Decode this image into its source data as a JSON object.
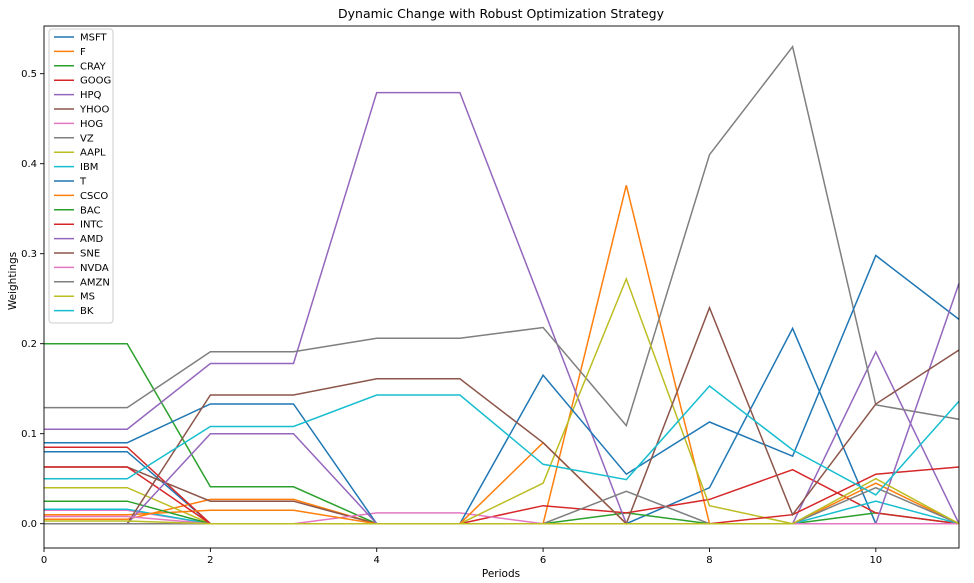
{
  "chart_data": {
    "type": "line",
    "title": "Dynamic Change with Robust Optimization Strategy",
    "xlabel": "Periods",
    "ylabel": "Weightings",
    "x": [
      0,
      1,
      2,
      3,
      4,
      5,
      6,
      7,
      8,
      9,
      10,
      11
    ],
    "xlim": [
      0,
      11
    ],
    "ylim": [
      -0.027,
      0.553
    ],
    "xticks": [
      0,
      2,
      4,
      6,
      8,
      10
    ],
    "yticks": [
      0.0,
      0.1,
      0.2,
      0.3,
      0.4,
      0.5
    ],
    "ytick_labels": [
      "0.0",
      "0.1",
      "0.2",
      "0.3",
      "0.4",
      "0.5"
    ],
    "legend_position": "upper-left",
    "grid": false,
    "series": [
      {
        "name": "MSFT",
        "color": "#1f77b4",
        "values": [
          0.08,
          0.08,
          0.0,
          0.0,
          0.0,
          0.0,
          0.0,
          0.0,
          0.04,
          0.217,
          0.0,
          0.0
        ]
      },
      {
        "name": "F",
        "color": "#ff7f0e",
        "values": [
          0.005,
          0.005,
          0.027,
          0.027,
          0.0,
          0.0,
          0.0,
          0.376,
          0.0,
          0.0,
          0.0,
          0.0
        ]
      },
      {
        "name": "CRAY",
        "color": "#2ca02c",
        "values": [
          0.2,
          0.2,
          0.041,
          0.041,
          0.0,
          0.0,
          0.0,
          0.012,
          0.0,
          0.0,
          0.012,
          0.0
        ]
      },
      {
        "name": "GOOG",
        "color": "#d62728",
        "values": [
          0.085,
          0.085,
          0.0,
          0.0,
          0.0,
          0.0,
          0.02,
          0.012,
          0.027,
          0.06,
          0.012,
          0.0
        ]
      },
      {
        "name": "HPQ",
        "color": "#9467bd",
        "values": [
          0.105,
          0.105,
          0.178,
          0.178,
          0.479,
          0.479,
          0.24,
          0.0,
          0.0,
          0.0,
          0.191,
          0.0
        ]
      },
      {
        "name": "YHOO",
        "color": "#8c564b",
        "values": [
          0.063,
          0.063,
          0.025,
          0.025,
          0.0,
          0.0,
          0.0,
          0.0,
          0.0,
          0.0,
          0.0,
          0.0
        ]
      },
      {
        "name": "HOG",
        "color": "#e377c2",
        "values": [
          0.015,
          0.015,
          0.0,
          0.0,
          0.012,
          0.012,
          0.0,
          0.0,
          0.0,
          0.0,
          0.0,
          0.0
        ]
      },
      {
        "name": "VZ",
        "color": "#7f7f7f",
        "values": [
          0.129,
          0.129,
          0.191,
          0.191,
          0.206,
          0.206,
          0.218,
          0.109,
          0.41,
          0.53,
          0.132,
          0.116
        ]
      },
      {
        "name": "AAPL",
        "color": "#bcbd22",
        "values": [
          0.04,
          0.04,
          0.0,
          0.0,
          0.0,
          0.0,
          0.045,
          0.272,
          0.02,
          0.0,
          0.0,
          0.0
        ]
      },
      {
        "name": "IBM",
        "color": "#17becf",
        "values": [
          0.016,
          0.016,
          0.0,
          0.0,
          0.0,
          0.0,
          0.0,
          0.0,
          0.0,
          0.0,
          0.025,
          0.0
        ]
      },
      {
        "name": "T",
        "color": "#1f77b4",
        "values": [
          0.09,
          0.09,
          0.133,
          0.133,
          0.0,
          0.0,
          0.165,
          0.055,
          0.113,
          0.075,
          0.298,
          0.227
        ]
      },
      {
        "name": "CSCO",
        "color": "#ff7f0e",
        "values": [
          0.01,
          0.01,
          0.015,
          0.015,
          0.0,
          0.0,
          0.09,
          0.0,
          0.0,
          0.0,
          0.045,
          0.0
        ]
      },
      {
        "name": "BAC",
        "color": "#2ca02c",
        "values": [
          0.025,
          0.025,
          0.0,
          0.0,
          0.0,
          0.0,
          0.0,
          0.0,
          0.0,
          0.0,
          0.0,
          0.0
        ]
      },
      {
        "name": "INTC",
        "color": "#d62728",
        "values": [
          0.063,
          0.063,
          0.0,
          0.0,
          0.0,
          0.0,
          0.0,
          0.0,
          0.0,
          0.01,
          0.055,
          0.063
        ]
      },
      {
        "name": "AMD",
        "color": "#9467bd",
        "values": [
          0.0,
          0.0,
          0.1,
          0.1,
          0.0,
          0.0,
          0.0,
          0.0,
          0.0,
          0.0,
          0.0,
          0.267
        ]
      },
      {
        "name": "SNE",
        "color": "#8c564b",
        "values": [
          0.0,
          0.0,
          0.143,
          0.143,
          0.161,
          0.161,
          0.09,
          0.0,
          0.24,
          0.01,
          0.133,
          0.193
        ]
      },
      {
        "name": "NVDA",
        "color": "#e377c2",
        "values": [
          0.008,
          0.008,
          0.0,
          0.0,
          0.0,
          0.0,
          0.0,
          0.0,
          0.0,
          0.0,
          0.0,
          0.0
        ]
      },
      {
        "name": "AMZN",
        "color": "#7f7f7f",
        "values": [
          0.0,
          0.0,
          0.0,
          0.0,
          0.0,
          0.0,
          0.0,
          0.036,
          0.0,
          0.0,
          0.04,
          0.0
        ]
      },
      {
        "name": "MS",
        "color": "#bcbd22",
        "values": [
          0.003,
          0.003,
          0.0,
          0.0,
          0.0,
          0.0,
          0.0,
          0.0,
          0.0,
          0.0,
          0.05,
          0.0
        ]
      },
      {
        "name": "BK",
        "color": "#17becf",
        "values": [
          0.05,
          0.05,
          0.108,
          0.108,
          0.143,
          0.143,
          0.066,
          0.049,
          0.153,
          0.082,
          0.032,
          0.136
        ]
      }
    ]
  }
}
